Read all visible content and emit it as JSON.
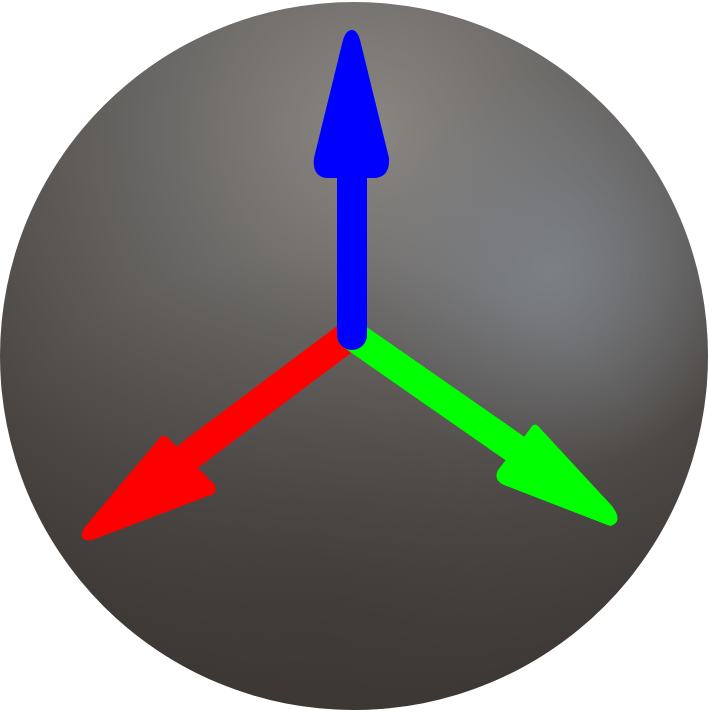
{
  "colors": {
    "background": "#ffffff",
    "sphere_highlight": "#8a8682",
    "sphere_mid": "#605e5c",
    "sphere_shadow": "#3f3a37",
    "sphere_cool_highlight": "#7c8086",
    "axis_x": "#ff0000",
    "axis_y": "#00ff00",
    "axis_z": "#0000ff"
  },
  "gizmo": {
    "axes": [
      {
        "name": "x-axis-arrow",
        "color": "#ff0000",
        "icon": "red-arrow"
      },
      {
        "name": "y-axis-arrow",
        "color": "#00ff00",
        "icon": "green-arrow"
      },
      {
        "name": "z-axis-arrow",
        "color": "#0000ff",
        "icon": "blue-arrow"
      }
    ]
  }
}
